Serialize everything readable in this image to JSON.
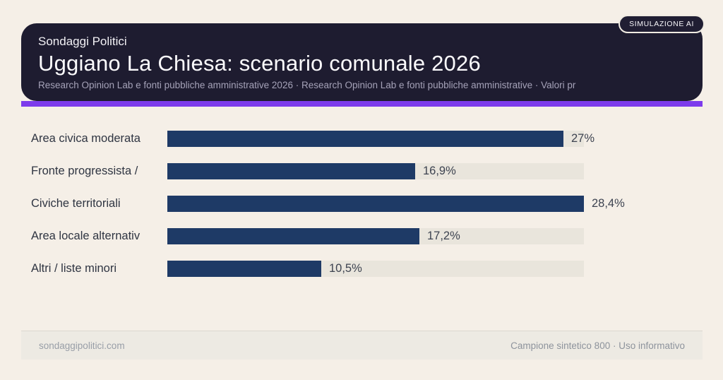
{
  "badge": {
    "label": "SIMULAZIONE AI"
  },
  "header": {
    "kicker": "Sondaggi Politici",
    "title": "Uggiano La Chiesa: scenario comunale 2026",
    "subtitle": "Research Opinion Lab e fonti pubbliche amministrative 2026 · Research Opinion Lab e fonti pubbliche amministrative · Valori pr",
    "background_color": "#1e1c30",
    "accent_color": "#7d3bec"
  },
  "chart_data": {
    "type": "bar",
    "orientation": "horizontal",
    "title": "",
    "categories": [
      "Area civica moderata",
      "Fronte progressista /",
      "Civiche territoriali",
      "Area locale alternativ",
      "Altri / liste minori"
    ],
    "values": [
      27,
      16.9,
      28.4,
      17.2,
      10.5
    ],
    "value_labels": [
      "27%",
      "16,9%",
      "28,4%",
      "17,2%",
      "10,5%"
    ],
    "max_value": 28.4,
    "xlim": [
      0,
      28.4
    ],
    "grid": false,
    "legend": false,
    "bar_color": "#1e3a66",
    "track_color": "#e9e5dc"
  },
  "footer": {
    "left": "sondaggipolitici.com",
    "right": "Campione sintetico 800 · Uso informativo"
  }
}
